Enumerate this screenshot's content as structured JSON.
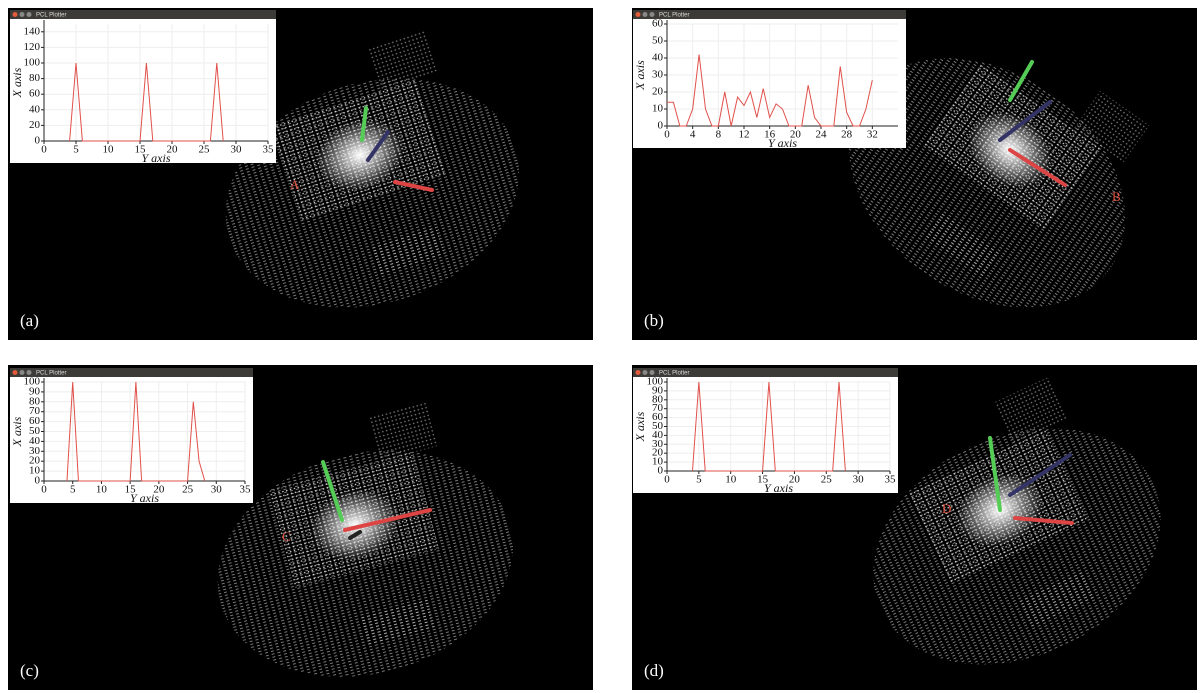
{
  "panels": [
    {
      "label": "(a)",
      "marker": "A",
      "window_title": "PCL Plotter"
    },
    {
      "label": "(b)",
      "marker": "B",
      "window_title": "PCL Plotter"
    },
    {
      "label": "(c)",
      "marker": "C",
      "window_title": "PCL Plotter"
    },
    {
      "label": "(d)",
      "marker": "D",
      "window_title": "PCL Plotter"
    }
  ],
  "chart_data": [
    {
      "type": "line",
      "x_label": "Y axis",
      "y_label": "X axis",
      "color": "#e0504a",
      "grid": true,
      "x": [
        4,
        5,
        6,
        15,
        16,
        17,
        26,
        27,
        28
      ],
      "values": [
        0,
        100,
        0,
        0,
        100,
        0,
        0,
        100,
        0
      ],
      "xlim": [
        0,
        35
      ],
      "xticks": [
        0,
        5,
        10,
        15,
        20,
        25,
        30,
        35
      ],
      "ylim": [
        0,
        150
      ],
      "yticks": [
        0,
        20,
        40,
        60,
        80,
        100,
        120,
        140
      ]
    },
    {
      "type": "line",
      "x_label": "Y axis",
      "y_label": "X axis",
      "color": "#e0504a",
      "grid": true,
      "x": [
        0,
        1,
        2,
        3,
        4,
        5,
        6,
        7,
        8,
        9,
        10,
        11,
        12,
        13,
        14,
        15,
        16,
        17,
        18,
        19,
        20,
        21,
        22,
        23,
        24,
        25,
        26,
        27,
        28,
        29,
        30,
        31,
        32
      ],
      "values": [
        14,
        14,
        0,
        0,
        10,
        42,
        10,
        0,
        0,
        20,
        0,
        17,
        12,
        20,
        5,
        22,
        5,
        13,
        10,
        0,
        0,
        0,
        24,
        5,
        0,
        0,
        0,
        35,
        8,
        0,
        0,
        10,
        27
      ],
      "xlim": [
        0,
        36
      ],
      "xticks": [
        0,
        4,
        8,
        12,
        16,
        20,
        24,
        28,
        32
      ],
      "ylim": [
        0,
        60
      ],
      "yticks": [
        0,
        10,
        20,
        30,
        40,
        50,
        60
      ]
    },
    {
      "type": "line",
      "x_label": "Y axis",
      "y_label": "X axis",
      "color": "#e0504a",
      "grid": true,
      "x": [
        4,
        5,
        6,
        15,
        16,
        17,
        25,
        26,
        27,
        28
      ],
      "values": [
        0,
        100,
        0,
        0,
        100,
        0,
        0,
        80,
        20,
        0
      ],
      "xlim": [
        0,
        35
      ],
      "xticks": [
        0,
        5,
        10,
        15,
        20,
        25,
        30,
        35
      ],
      "ylim": [
        0,
        100
      ],
      "yticks": [
        0,
        10,
        20,
        30,
        40,
        50,
        60,
        70,
        80,
        90,
        100
      ]
    },
    {
      "type": "line",
      "x_label": "Y axis",
      "y_label": "X axis",
      "color": "#e0504a",
      "grid": true,
      "x": [
        4,
        5,
        6,
        15,
        16,
        17,
        26,
        27,
        28
      ],
      "values": [
        0,
        100,
        0,
        0,
        100,
        0,
        0,
        100,
        0
      ],
      "xlim": [
        0,
        35
      ],
      "xticks": [
        0,
        5,
        10,
        15,
        20,
        25,
        30,
        35
      ],
      "ylim": [
        0,
        100
      ],
      "yticks": [
        0,
        10,
        20,
        30,
        40,
        50,
        60,
        70,
        80,
        90,
        100
      ]
    }
  ]
}
